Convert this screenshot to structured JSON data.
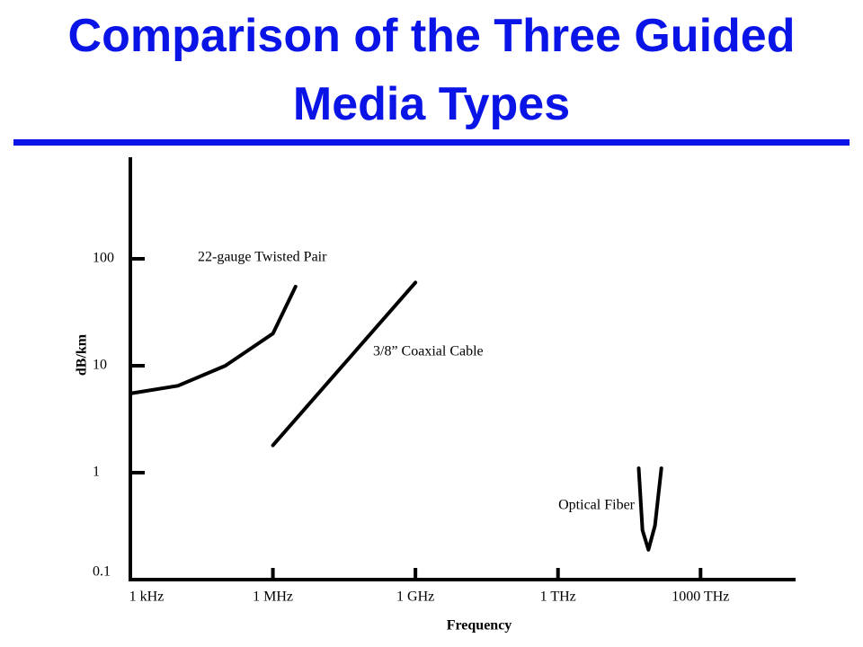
{
  "chart_data": {
    "type": "line",
    "title": "Comparison of the Three Guided Media Types",
    "xlabel": "Frequency",
    "ylabel": "dB/km",
    "xscale": "log",
    "yscale": "log",
    "xlim": [
      1000,
      1e+17
    ],
    "ylim": [
      0.1,
      1000
    ],
    "xticks": [
      {
        "value": 1000,
        "label": "1 kHz"
      },
      {
        "value": 1000000,
        "label": "1 MHz"
      },
      {
        "value": 1000000000,
        "label": "1 GHz"
      },
      {
        "value": 1000000000000,
        "label": "1 THz"
      },
      {
        "value": 1000000000000000,
        "label": "1000 THz"
      }
    ],
    "yticks": [
      0.1,
      1,
      10,
      100
    ],
    "color": "#000000",
    "series": [
      {
        "name": "22-gauge Twisted Pair",
        "x": [
          1000,
          10000,
          100000,
          1000000,
          3000000
        ],
        "values": [
          5.5,
          6.5,
          10,
          20,
          55
        ]
      },
      {
        "name": "3/8” Coaxial Cable",
        "x": [
          1000000,
          1000000000
        ],
        "values": [
          1.8,
          60
        ]
      },
      {
        "name": "Optical Fiber",
        "x": [
          50000000000000,
          60000000000000,
          80000000000000,
          110000000000000,
          150000000000000
        ],
        "values": [
          1.1,
          0.29,
          0.19,
          0.32,
          1.1
        ]
      }
    ]
  }
}
